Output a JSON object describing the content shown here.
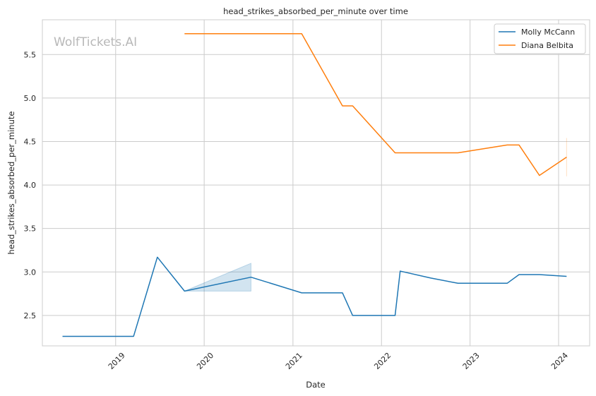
{
  "chart_data": {
    "type": "line",
    "title": "head_strikes_absorbed_per_minute over time",
    "xlabel": "Date",
    "ylabel": "head_strikes_absorbed_per_minute",
    "watermark": "WolfTickets.AI",
    "xlim": [
      "2018-03-05",
      "2024-05-08"
    ],
    "ylim": [
      2.15,
      5.9
    ],
    "x_ticks": [
      "2019",
      "2020",
      "2021",
      "2022",
      "2023",
      "2024"
    ],
    "y_ticks": [
      "2.5",
      "3.0",
      "3.5",
      "4.0",
      "4.5",
      "5.0",
      "5.5"
    ],
    "grid": true,
    "legend_position": "top-right",
    "series": [
      {
        "name": "Molly McCann",
        "color": "#1f77b4",
        "points": [
          {
            "x": "2018-05-27",
            "y": 2.26
          },
          {
            "x": "2019-03-16",
            "y": 2.26
          },
          {
            "x": "2019-06-22",
            "y": 3.17
          },
          {
            "x": "2019-10-12",
            "y": 2.78
          },
          {
            "x": "2020-07-12",
            "y": 2.94
          },
          {
            "x": "2021-02-06",
            "y": 2.76
          },
          {
            "x": "2021-07-24",
            "y": 2.76
          },
          {
            "x": "2021-09-04",
            "y": 2.5
          },
          {
            "x": "2022-02-26",
            "y": 2.5
          },
          {
            "x": "2022-03-19",
            "y": 3.01
          },
          {
            "x": "2022-07-23",
            "y": 2.93
          },
          {
            "x": "2022-11-12",
            "y": 2.87
          },
          {
            "x": "2023-06-03",
            "y": 2.87
          },
          {
            "x": "2023-07-22",
            "y": 2.97
          },
          {
            "x": "2023-10-14",
            "y": 2.97
          },
          {
            "x": "2024-02-03",
            "y": 2.95
          }
        ],
        "band": [
          {
            "x": "2019-10-12",
            "lo": 2.78,
            "hi": 2.78
          },
          {
            "x": "2020-07-12",
            "lo": 2.78,
            "hi": 3.1
          }
        ]
      },
      {
        "name": "Diana Belbita",
        "color": "#ff7f0e",
        "points": [
          {
            "x": "2019-10-12",
            "y": 5.74
          },
          {
            "x": "2021-02-06",
            "y": 5.74
          },
          {
            "x": "2021-07-24",
            "y": 4.91
          },
          {
            "x": "2021-09-04",
            "y": 4.91
          },
          {
            "x": "2022-02-26",
            "y": 4.37
          },
          {
            "x": "2022-11-12",
            "y": 4.37
          },
          {
            "x": "2023-06-03",
            "y": 4.46
          },
          {
            "x": "2023-07-22",
            "y": 4.46
          },
          {
            "x": "2023-10-14",
            "y": 4.11
          },
          {
            "x": "2024-02-03",
            "y": 4.32
          }
        ],
        "band": [
          {
            "x": "2024-02-03",
            "lo": 4.1,
            "hi": 4.54
          }
        ]
      }
    ]
  }
}
